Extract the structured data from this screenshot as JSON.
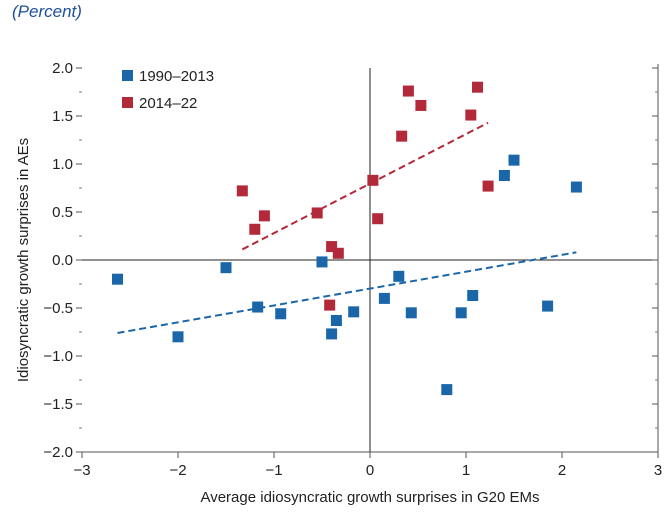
{
  "subtitle": "(Percent)",
  "colors": {
    "series1": "#1a66a8",
    "series2": "#b22a3a"
  },
  "chart_data": {
    "type": "scatter",
    "title": "",
    "xlabel": "Average idiosyncratic growth surprises in G20 EMs",
    "ylabel": "Idiosyncratic growth surprises in AEs",
    "xlim": [
      -3,
      3
    ],
    "ylim": [
      -2,
      2
    ],
    "xticks": [
      -3,
      -2,
      -1,
      0,
      1,
      2,
      3
    ],
    "xtick_labels": [
      "−3",
      "−2",
      "−1",
      "0",
      "1",
      "2",
      "3"
    ],
    "yticks": [
      2,
      1.5,
      1,
      0.5,
      0,
      -0.5,
      -1,
      -1.5,
      -2
    ],
    "ytick_labels": [
      "2.0",
      "1.5",
      "1.0",
      "0.5",
      "0.0",
      "−0.5",
      "−1.0",
      "−1.5",
      "−2.0"
    ],
    "grid": false,
    "legend_position": "top-left",
    "series": [
      {
        "name": "1990–2013",
        "color": "#1a66a8",
        "marker": "square",
        "x": [
          -2.63,
          -2.0,
          -1.5,
          -1.17,
          -0.93,
          -0.5,
          -0.4,
          -0.35,
          -0.17,
          0.15,
          0.3,
          0.43,
          0.8,
          0.95,
          1.07,
          1.4,
          1.5,
          1.85,
          2.15
        ],
        "y": [
          -0.2,
          -0.8,
          -0.08,
          -0.49,
          -0.56,
          -0.02,
          -0.77,
          -0.63,
          -0.54,
          -0.4,
          -0.17,
          -0.55,
          -1.35,
          -0.55,
          -0.37,
          0.88,
          1.04,
          -0.48,
          0.76
        ],
        "trendline": {
          "x": [
            -2.63,
            2.15
          ],
          "y": [
            -0.76,
            0.08
          ]
        }
      },
      {
        "name": "2014–22",
        "color": "#b22a3a",
        "marker": "square",
        "x": [
          -1.33,
          -1.2,
          -1.1,
          -0.55,
          -0.42,
          -0.4,
          -0.33,
          0.03,
          0.08,
          0.33,
          0.4,
          0.53,
          1.05,
          1.12,
          1.23
        ],
        "y": [
          0.72,
          0.32,
          0.46,
          0.49,
          -0.47,
          0.14,
          0.07,
          0.83,
          0.43,
          1.29,
          1.76,
          1.61,
          1.51,
          1.8,
          0.77
        ],
        "trendline": {
          "x": [
            -1.33,
            1.23
          ],
          "y": [
            0.11,
            1.43
          ]
        }
      }
    ]
  }
}
